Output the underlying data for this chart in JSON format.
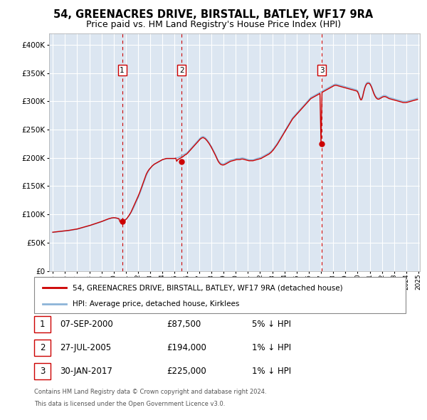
{
  "title": "54, GREENACRES DRIVE, BIRSTALL, BATLEY, WF17 9RA",
  "subtitle": "Price paid vs. HM Land Registry's House Price Index (HPI)",
  "background_color": "#ffffff",
  "plot_bg_color": "#dce6f1",
  "grid_color": "#ffffff",
  "ylim": [
    0,
    420000
  ],
  "yticks": [
    0,
    50000,
    100000,
    150000,
    200000,
    250000,
    300000,
    350000,
    400000
  ],
  "ytick_labels": [
    "£0",
    "£50K",
    "£100K",
    "£150K",
    "£200K",
    "£250K",
    "£300K",
    "£350K",
    "£400K"
  ],
  "x_start_year": 1995,
  "x_end_year": 2025,
  "sale_dates_num": [
    2000.69,
    2005.57,
    2017.08
  ],
  "sale_prices": [
    87500,
    194000,
    225000
  ],
  "sale_labels": [
    "1",
    "2",
    "3"
  ],
  "hpi_line_color": "#8db4d8",
  "price_line_color": "#cc0000",
  "sale_marker_color": "#cc0000",
  "vline_color": "#cc0000",
  "legend_box_label1": "54, GREENACRES DRIVE, BIRSTALL, BATLEY, WF17 9RA (detached house)",
  "legend_box_label2": "HPI: Average price, detached house, Kirklees",
  "table_rows": [
    {
      "num": "1",
      "date": "07-SEP-2000",
      "price": "£87,500",
      "hpi": "5% ↓ HPI"
    },
    {
      "num": "2",
      "date": "27-JUL-2005",
      "price": "£194,000",
      "hpi": "1% ↓ HPI"
    },
    {
      "num": "3",
      "date": "30-JAN-2017",
      "price": "£225,000",
      "hpi": "1% ↓ HPI"
    }
  ],
  "footer1": "Contains HM Land Registry data © Crown copyright and database right 2024.",
  "footer2": "This data is licensed under the Open Government Licence v3.0.",
  "hpi_data_x": [
    1995.0,
    1995.083,
    1995.167,
    1995.25,
    1995.333,
    1995.417,
    1995.5,
    1995.583,
    1995.667,
    1995.75,
    1995.833,
    1995.917,
    1996.0,
    1996.083,
    1996.167,
    1996.25,
    1996.333,
    1996.417,
    1996.5,
    1996.583,
    1996.667,
    1996.75,
    1996.833,
    1996.917,
    1997.0,
    1997.083,
    1997.167,
    1997.25,
    1997.333,
    1997.417,
    1997.5,
    1997.583,
    1997.667,
    1997.75,
    1997.833,
    1997.917,
    1998.0,
    1998.083,
    1998.167,
    1998.25,
    1998.333,
    1998.417,
    1998.5,
    1998.583,
    1998.667,
    1998.75,
    1998.833,
    1998.917,
    1999.0,
    1999.083,
    1999.167,
    1999.25,
    1999.333,
    1999.417,
    1999.5,
    1999.583,
    1999.667,
    1999.75,
    1999.833,
    1999.917,
    2000.0,
    2000.083,
    2000.167,
    2000.25,
    2000.333,
    2000.417,
    2000.5,
    2000.583,
    2000.667,
    2000.75,
    2000.833,
    2000.917,
    2001.0,
    2001.083,
    2001.167,
    2001.25,
    2001.333,
    2001.417,
    2001.5,
    2001.583,
    2001.667,
    2001.75,
    2001.833,
    2001.917,
    2002.0,
    2002.083,
    2002.167,
    2002.25,
    2002.333,
    2002.417,
    2002.5,
    2002.583,
    2002.667,
    2002.75,
    2002.833,
    2002.917,
    2003.0,
    2003.083,
    2003.167,
    2003.25,
    2003.333,
    2003.417,
    2003.5,
    2003.583,
    2003.667,
    2003.75,
    2003.833,
    2003.917,
    2004.0,
    2004.083,
    2004.167,
    2004.25,
    2004.333,
    2004.417,
    2004.5,
    2004.583,
    2004.667,
    2004.75,
    2004.833,
    2004.917,
    2005.0,
    2005.083,
    2005.167,
    2005.25,
    2005.333,
    2005.417,
    2005.5,
    2005.583,
    2005.667,
    2005.75,
    2005.833,
    2005.917,
    2006.0,
    2006.083,
    2006.167,
    2006.25,
    2006.333,
    2006.417,
    2006.5,
    2006.583,
    2006.667,
    2006.75,
    2006.833,
    2006.917,
    2007.0,
    2007.083,
    2007.167,
    2007.25,
    2007.333,
    2007.417,
    2007.5,
    2007.583,
    2007.667,
    2007.75,
    2007.833,
    2007.917,
    2008.0,
    2008.083,
    2008.167,
    2008.25,
    2008.333,
    2008.417,
    2008.5,
    2008.583,
    2008.667,
    2008.75,
    2008.833,
    2008.917,
    2009.0,
    2009.083,
    2009.167,
    2009.25,
    2009.333,
    2009.417,
    2009.5,
    2009.583,
    2009.667,
    2009.75,
    2009.833,
    2009.917,
    2010.0,
    2010.083,
    2010.167,
    2010.25,
    2010.333,
    2010.417,
    2010.5,
    2010.583,
    2010.667,
    2010.75,
    2010.833,
    2010.917,
    2011.0,
    2011.083,
    2011.167,
    2011.25,
    2011.333,
    2011.417,
    2011.5,
    2011.583,
    2011.667,
    2011.75,
    2011.833,
    2011.917,
    2012.0,
    2012.083,
    2012.167,
    2012.25,
    2012.333,
    2012.417,
    2012.5,
    2012.583,
    2012.667,
    2012.75,
    2012.833,
    2012.917,
    2013.0,
    2013.083,
    2013.167,
    2013.25,
    2013.333,
    2013.417,
    2013.5,
    2013.583,
    2013.667,
    2013.75,
    2013.833,
    2013.917,
    2014.0,
    2014.083,
    2014.167,
    2014.25,
    2014.333,
    2014.417,
    2014.5,
    2014.583,
    2014.667,
    2014.75,
    2014.833,
    2014.917,
    2015.0,
    2015.083,
    2015.167,
    2015.25,
    2015.333,
    2015.417,
    2015.5,
    2015.583,
    2015.667,
    2015.75,
    2015.833,
    2015.917,
    2016.0,
    2016.083,
    2016.167,
    2016.25,
    2016.333,
    2016.417,
    2016.5,
    2016.583,
    2016.667,
    2016.75,
    2016.833,
    2016.917,
    2017.0,
    2017.083,
    2017.167,
    2017.25,
    2017.333,
    2017.417,
    2017.5,
    2017.583,
    2017.667,
    2017.75,
    2017.833,
    2017.917,
    2018.0,
    2018.083,
    2018.167,
    2018.25,
    2018.333,
    2018.417,
    2018.5,
    2018.583,
    2018.667,
    2018.75,
    2018.833,
    2018.917,
    2019.0,
    2019.083,
    2019.167,
    2019.25,
    2019.333,
    2019.417,
    2019.5,
    2019.583,
    2019.667,
    2019.75,
    2019.833,
    2019.917,
    2020.0,
    2020.083,
    2020.167,
    2020.25,
    2020.333,
    2020.417,
    2020.5,
    2020.583,
    2020.667,
    2020.75,
    2020.833,
    2020.917,
    2021.0,
    2021.083,
    2021.167,
    2021.25,
    2021.333,
    2021.417,
    2021.5,
    2021.583,
    2021.667,
    2021.75,
    2021.833,
    2021.917,
    2022.0,
    2022.083,
    2022.167,
    2022.25,
    2022.333,
    2022.417,
    2022.5,
    2022.583,
    2022.667,
    2022.75,
    2022.833,
    2022.917,
    2023.0,
    2023.083,
    2023.167,
    2023.25,
    2023.333,
    2023.417,
    2023.5,
    2023.583,
    2023.667,
    2023.75,
    2023.833,
    2023.917,
    2024.0,
    2024.083,
    2024.167,
    2024.25,
    2024.333,
    2024.417,
    2024.5,
    2024.583,
    2024.667,
    2024.75,
    2024.833,
    2024.917
  ],
  "hpi_data_y": [
    68000,
    68200,
    68400,
    68600,
    68800,
    69000,
    69200,
    69400,
    69600,
    69800,
    70000,
    70200,
    70400,
    70600,
    70800,
    71000,
    71300,
    71600,
    71900,
    72200,
    72500,
    72800,
    73100,
    73400,
    73700,
    74200,
    74700,
    75200,
    75700,
    76200,
    76700,
    77200,
    77700,
    78200,
    78700,
    79200,
    79700,
    80300,
    80900,
    81500,
    82100,
    82700,
    83300,
    83900,
    84500,
    85100,
    85700,
    86300,
    86900,
    87600,
    88300,
    89000,
    89700,
    90400,
    91100,
    91800,
    92300,
    92800,
    93300,
    93500,
    93700,
    93600,
    93400,
    93000,
    92500,
    92000,
    91600,
    91200,
    90900,
    90600,
    90500,
    90800,
    91500,
    93000,
    95000,
    97500,
    100000,
    103000,
    106000,
    109500,
    113000,
    117000,
    121000,
    125000,
    129000,
    133500,
    138000,
    143000,
    148000,
    153000,
    158000,
    163000,
    168000,
    172000,
    175500,
    178500,
    181000,
    183500,
    185500,
    187000,
    188500,
    189500,
    190500,
    191500,
    192500,
    193500,
    194500,
    195500,
    196500,
    197500,
    198000,
    198500,
    199000,
    199000,
    199000,
    199000,
    199000,
    199000,
    199000,
    199000,
    199000,
    199500,
    200000,
    200500,
    201000,
    202000,
    203000,
    204000,
    205000,
    206000,
    207000,
    208000,
    209000,
    211000,
    213000,
    215000,
    217000,
    219000,
    221000,
    223000,
    225000,
    227000,
    229000,
    231000,
    233000,
    235000,
    236500,
    237500,
    238000,
    237000,
    236000,
    234000,
    232000,
    229500,
    227000,
    224000,
    221000,
    217500,
    214000,
    210500,
    207000,
    203000,
    199000,
    195500,
    193000,
    191000,
    190000,
    189500,
    189500,
    190000,
    191000,
    192000,
    193000,
    194000,
    195000,
    196000,
    196500,
    197000,
    197500,
    198000,
    198500,
    199000,
    199000,
    199000,
    199000,
    199500,
    200000,
    200000,
    199500,
    199000,
    198500,
    198000,
    197500,
    197000,
    197000,
    197000,
    197000,
    197000,
    197500,
    198000,
    198500,
    199000,
    199500,
    200000,
    200500,
    201000,
    202000,
    203000,
    204000,
    205000,
    206000,
    207000,
    208000,
    209000,
    210500,
    212000,
    214000,
    216000,
    218500,
    221000,
    223500,
    226000,
    229000,
    232000,
    235000,
    238000,
    241000,
    244000,
    247000,
    250000,
    253000,
    256000,
    259000,
    262000,
    265000,
    268000,
    271000,
    273000,
    275000,
    277000,
    279000,
    281000,
    283000,
    285000,
    287000,
    289000,
    291000,
    293000,
    295000,
    297000,
    299000,
    301000,
    303000,
    305000,
    307000,
    308000,
    309000,
    310000,
    311000,
    312000,
    313000,
    314000,
    315000,
    316000,
    317000,
    318000,
    319000,
    320000,
    321000,
    322000,
    323000,
    324000,
    325000,
    326000,
    327000,
    328000,
    329000,
    330000,
    330500,
    330500,
    330000,
    329500,
    329000,
    328500,
    328000,
    327500,
    327000,
    326500,
    326000,
    325500,
    325000,
    324500,
    324000,
    323500,
    323000,
    322500,
    322000,
    321500,
    321000,
    320500,
    319000,
    315000,
    309000,
    305000,
    305000,
    310000,
    318000,
    325000,
    330000,
    333000,
    334000,
    334000,
    333000,
    330000,
    326000,
    321000,
    316000,
    312000,
    309000,
    307000,
    306000,
    306000,
    307000,
    308000,
    309000,
    310000,
    310500,
    310500,
    310000,
    309000,
    308000,
    307000,
    306500,
    306000,
    305500,
    305000,
    304500,
    304000,
    303500,
    303000,
    302500,
    302000,
    301500,
    301000,
    300500,
    300000,
    300000,
    300000,
    300000,
    300500,
    301000,
    301500,
    302000,
    302500,
    303000,
    303500,
    304000,
    304500,
    305000,
    305500
  ],
  "price_data_x": [
    1995.0,
    1995.083,
    1995.167,
    1995.25,
    1995.333,
    1995.417,
    1995.5,
    1995.583,
    1995.667,
    1995.75,
    1995.833,
    1995.917,
    1996.0,
    1996.083,
    1996.167,
    1996.25,
    1996.333,
    1996.417,
    1996.5,
    1996.583,
    1996.667,
    1996.75,
    1996.833,
    1996.917,
    1997.0,
    1997.083,
    1997.167,
    1997.25,
    1997.333,
    1997.417,
    1997.5,
    1997.583,
    1997.667,
    1997.75,
    1997.833,
    1997.917,
    1998.0,
    1998.083,
    1998.167,
    1998.25,
    1998.333,
    1998.417,
    1998.5,
    1998.583,
    1998.667,
    1998.75,
    1998.833,
    1998.917,
    1999.0,
    1999.083,
    1999.167,
    1999.25,
    1999.333,
    1999.417,
    1999.5,
    1999.583,
    1999.667,
    1999.75,
    1999.833,
    1999.917,
    2000.0,
    2000.083,
    2000.167,
    2000.25,
    2000.333,
    2000.417,
    2000.5,
    2000.583,
    2000.667,
    2000.75,
    2000.833,
    2000.917,
    2001.0,
    2001.083,
    2001.167,
    2001.25,
    2001.333,
    2001.417,
    2001.5,
    2001.583,
    2001.667,
    2001.75,
    2001.833,
    2001.917,
    2002.0,
    2002.083,
    2002.167,
    2002.25,
    2002.333,
    2002.417,
    2002.5,
    2002.583,
    2002.667,
    2002.75,
    2002.833,
    2002.917,
    2003.0,
    2003.083,
    2003.167,
    2003.25,
    2003.333,
    2003.417,
    2003.5,
    2003.583,
    2003.667,
    2003.75,
    2003.833,
    2003.917,
    2004.0,
    2004.083,
    2004.167,
    2004.25,
    2004.333,
    2004.417,
    2004.5,
    2004.583,
    2004.667,
    2004.75,
    2004.833,
    2004.917,
    2005.0,
    2005.083,
    2005.167,
    2005.25,
    2005.333,
    2005.417,
    2005.5,
    2005.583,
    2005.667,
    2005.75,
    2005.833,
    2005.917,
    2006.0,
    2006.083,
    2006.167,
    2006.25,
    2006.333,
    2006.417,
    2006.5,
    2006.583,
    2006.667,
    2006.75,
    2006.833,
    2006.917,
    2007.0,
    2007.083,
    2007.167,
    2007.25,
    2007.333,
    2007.417,
    2007.5,
    2007.583,
    2007.667,
    2007.75,
    2007.833,
    2007.917,
    2008.0,
    2008.083,
    2008.167,
    2008.25,
    2008.333,
    2008.417,
    2008.5,
    2008.583,
    2008.667,
    2008.75,
    2008.833,
    2008.917,
    2009.0,
    2009.083,
    2009.167,
    2009.25,
    2009.333,
    2009.417,
    2009.5,
    2009.583,
    2009.667,
    2009.75,
    2009.833,
    2009.917,
    2010.0,
    2010.083,
    2010.167,
    2010.25,
    2010.333,
    2010.417,
    2010.5,
    2010.583,
    2010.667,
    2010.75,
    2010.833,
    2010.917,
    2011.0,
    2011.083,
    2011.167,
    2011.25,
    2011.333,
    2011.417,
    2011.5,
    2011.583,
    2011.667,
    2011.75,
    2011.833,
    2011.917,
    2012.0,
    2012.083,
    2012.167,
    2012.25,
    2012.333,
    2012.417,
    2012.5,
    2012.583,
    2012.667,
    2012.75,
    2012.833,
    2012.917,
    2013.0,
    2013.083,
    2013.167,
    2013.25,
    2013.333,
    2013.417,
    2013.5,
    2013.583,
    2013.667,
    2013.75,
    2013.833,
    2013.917,
    2014.0,
    2014.083,
    2014.167,
    2014.25,
    2014.333,
    2014.417,
    2014.5,
    2014.583,
    2014.667,
    2014.75,
    2014.833,
    2014.917,
    2015.0,
    2015.083,
    2015.167,
    2015.25,
    2015.333,
    2015.417,
    2015.5,
    2015.583,
    2015.667,
    2015.75,
    2015.833,
    2015.917,
    2016.0,
    2016.083,
    2016.167,
    2016.25,
    2016.333,
    2016.417,
    2016.5,
    2016.583,
    2016.667,
    2016.75,
    2016.833,
    2016.917,
    2017.0,
    2017.083,
    2017.167,
    2017.25,
    2017.333,
    2017.417,
    2017.5,
    2017.583,
    2017.667,
    2017.75,
    2017.833,
    2017.917,
    2018.0,
    2018.083,
    2018.167,
    2018.25,
    2018.333,
    2018.417,
    2018.5,
    2018.583,
    2018.667,
    2018.75,
    2018.833,
    2018.917,
    2019.0,
    2019.083,
    2019.167,
    2019.25,
    2019.333,
    2019.417,
    2019.5,
    2019.583,
    2019.667,
    2019.75,
    2019.833,
    2019.917,
    2020.0,
    2020.083,
    2020.167,
    2020.25,
    2020.333,
    2020.417,
    2020.5,
    2020.583,
    2020.667,
    2020.75,
    2020.833,
    2020.917,
    2021.0,
    2021.083,
    2021.167,
    2021.25,
    2021.333,
    2021.417,
    2021.5,
    2021.583,
    2021.667,
    2021.75,
    2021.833,
    2021.917,
    2022.0,
    2022.083,
    2022.167,
    2022.25,
    2022.333,
    2022.417,
    2022.5,
    2022.583,
    2022.667,
    2022.75,
    2022.833,
    2022.917,
    2023.0,
    2023.083,
    2023.167,
    2023.25,
    2023.333,
    2023.417,
    2023.5,
    2023.583,
    2023.667,
    2023.75,
    2023.833,
    2023.917,
    2024.0,
    2024.083,
    2024.167,
    2024.25,
    2024.333,
    2024.417,
    2024.5,
    2024.583,
    2024.667,
    2024.75,
    2024.833,
    2024.917
  ],
  "price_data_y": [
    68500,
    68700,
    68900,
    69100,
    69300,
    69500,
    69700,
    69900,
    70100,
    70300,
    70500,
    70700,
    70900,
    71100,
    71300,
    71500,
    71800,
    72100,
    72400,
    72700,
    73000,
    73300,
    73600,
    73900,
    74200,
    74700,
    75200,
    75700,
    76200,
    76700,
    77200,
    77700,
    78200,
    78700,
    79200,
    79700,
    80200,
    80800,
    81400,
    82000,
    82600,
    83200,
    83800,
    84400,
    85000,
    85600,
    86200,
    86800,
    87400,
    88100,
    88800,
    89500,
    90200,
    90900,
    91600,
    92300,
    92800,
    93300,
    93800,
    94000,
    94200,
    94100,
    93900,
    93500,
    93000,
    92500,
    87500,
    87500,
    87500,
    88000,
    88500,
    89500,
    91000,
    93000,
    95500,
    98000,
    101000,
    104000,
    108000,
    112000,
    116000,
    120000,
    124000,
    128000,
    132000,
    136500,
    141000,
    146000,
    151000,
    156000,
    161000,
    166000,
    171000,
    174500,
    177500,
    180000,
    182000,
    184000,
    186000,
    187500,
    189000,
    190000,
    191000,
    192000,
    193000,
    194000,
    195000,
    196000,
    197000,
    197500,
    198000,
    198500,
    199000,
    199000,
    199000,
    199000,
    199000,
    199000,
    199000,
    199000,
    199000,
    199500,
    194000,
    197000,
    198000,
    199000,
    200000,
    201000,
    202000,
    203500,
    205000,
    206000,
    207000,
    209000,
    211000,
    213000,
    215000,
    217000,
    219000,
    221000,
    223000,
    225000,
    227000,
    229000,
    231000,
    233000,
    234500,
    235500,
    236000,
    235000,
    234000,
    232000,
    230000,
    227500,
    225000,
    222000,
    219000,
    215500,
    212000,
    208500,
    205000,
    201000,
    197000,
    193500,
    191000,
    189000,
    188000,
    187500,
    187500,
    188000,
    189000,
    190000,
    191000,
    192000,
    193000,
    194000,
    194500,
    195000,
    195500,
    196000,
    196500,
    197000,
    197000,
    197000,
    197000,
    197500,
    198000,
    198000,
    197500,
    197000,
    196500,
    196000,
    195500,
    195000,
    195000,
    195000,
    195000,
    195000,
    195500,
    196000,
    196500,
    197000,
    197500,
    198000,
    198500,
    199000,
    200000,
    201000,
    202000,
    203000,
    204000,
    205000,
    206000,
    207000,
    208500,
    210000,
    212000,
    214000,
    216500,
    219000,
    221500,
    224000,
    227000,
    230000,
    233000,
    236000,
    239000,
    242000,
    245000,
    248000,
    251000,
    254000,
    257000,
    260000,
    263000,
    266000,
    269000,
    271000,
    273000,
    275000,
    277000,
    279000,
    281000,
    283000,
    285000,
    287000,
    289000,
    291000,
    293000,
    295000,
    297000,
    299000,
    301000,
    303000,
    305000,
    306000,
    307000,
    308000,
    309000,
    310000,
    311000,
    312000,
    313000,
    314000,
    225000,
    316000,
    317000,
    318000,
    319000,
    320000,
    321000,
    322000,
    323000,
    324000,
    325000,
    326000,
    327000,
    328000,
    328500,
    328500,
    328000,
    327500,
    327000,
    326500,
    326000,
    325500,
    325000,
    324500,
    324000,
    323500,
    323000,
    322500,
    322000,
    321500,
    321000,
    320500,
    320000,
    319500,
    319000,
    318500,
    317000,
    313000,
    307000,
    303000,
    303000,
    308000,
    316000,
    323000,
    328000,
    331000,
    332000,
    332000,
    331000,
    328000,
    324000,
    319000,
    314000,
    310000,
    307000,
    305000,
    304000,
    304000,
    305000,
    306000,
    307000,
    308000,
    308500,
    308500,
    308000,
    307000,
    306000,
    305000,
    304500,
    304000,
    303500,
    303000,
    302500,
    302000,
    301500,
    301000,
    300500,
    300000,
    299500,
    299000,
    298500,
    298000,
    298000,
    298000,
    298000,
    298500,
    299000,
    299500,
    300000,
    300500,
    301000,
    301500,
    302000,
    302500,
    303000,
    303500
  ]
}
